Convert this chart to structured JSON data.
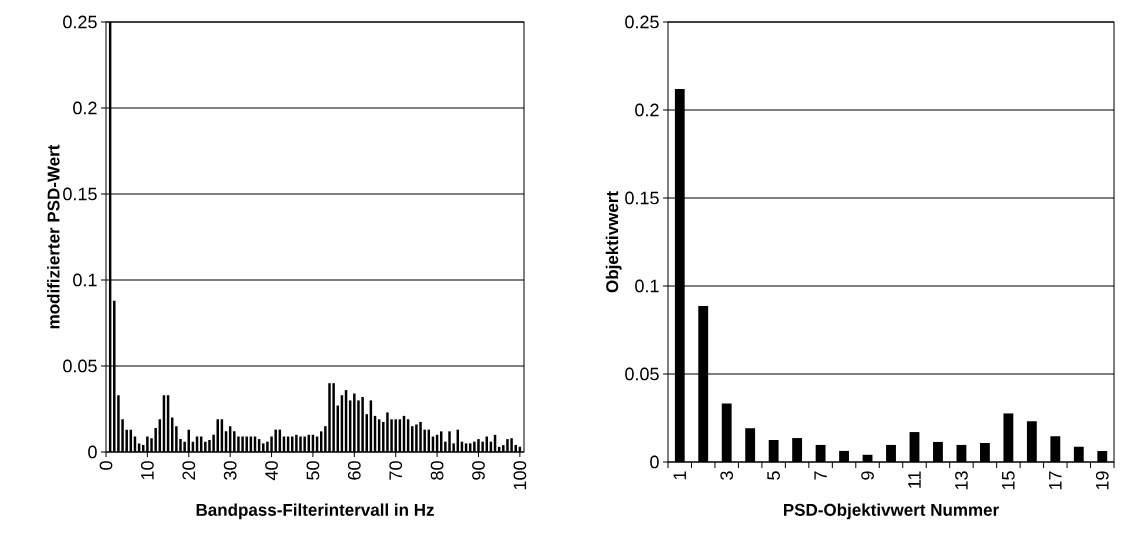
{
  "chart_data": [
    {
      "type": "bar",
      "xlabel": "Bandpass-Filterintervall in Hz",
      "ylabel": "modifizierter PSD-Wert",
      "color": "#000000",
      "grid": "y",
      "x": [
        1,
        2,
        3,
        4,
        5,
        6,
        7,
        8,
        9,
        10,
        11,
        12,
        13,
        14,
        15,
        16,
        17,
        18,
        19,
        20,
        21,
        22,
        23,
        24,
        25,
        26,
        27,
        28,
        29,
        30,
        31,
        32,
        33,
        34,
        35,
        36,
        37,
        38,
        39,
        40,
        41,
        42,
        43,
        44,
        45,
        46,
        47,
        48,
        49,
        50,
        51,
        52,
        53,
        54,
        55,
        56,
        57,
        58,
        59,
        60,
        61,
        62,
        63,
        64,
        65,
        66,
        67,
        68,
        69,
        70,
        71,
        72,
        73,
        74,
        75,
        76,
        77,
        78,
        79,
        80,
        81,
        82,
        83,
        84,
        85,
        86,
        87,
        88,
        89,
        90,
        91,
        92,
        93,
        94,
        95,
        96,
        97,
        98,
        99,
        100
      ],
      "values": [
        0.25,
        0.088,
        0.033,
        0.019,
        0.013,
        0.013,
        0.009,
        0.005,
        0.004,
        0.009,
        0.008,
        0.014,
        0.019,
        0.033,
        0.033,
        0.02,
        0.015,
        0.0075,
        0.006,
        0.013,
        0.006,
        0.009,
        0.009,
        0.006,
        0.007,
        0.01,
        0.019,
        0.019,
        0.012,
        0.015,
        0.012,
        0.009,
        0.009,
        0.009,
        0.009,
        0.009,
        0.0075,
        0.005,
        0.006,
        0.009,
        0.013,
        0.013,
        0.009,
        0.009,
        0.009,
        0.01,
        0.009,
        0.009,
        0.01,
        0.01,
        0.009,
        0.012,
        0.015,
        0.04,
        0.04,
        0.027,
        0.033,
        0.036,
        0.03,
        0.034,
        0.03,
        0.032,
        0.022,
        0.03,
        0.021,
        0.019,
        0.0175,
        0.023,
        0.019,
        0.019,
        0.019,
        0.021,
        0.019,
        0.015,
        0.016,
        0.0175,
        0.013,
        0.013,
        0.009,
        0.01,
        0.012,
        0.006,
        0.012,
        0.005,
        0.013,
        0.006,
        0.005,
        0.005,
        0.006,
        0.0075,
        0.006,
        0.009,
        0.006,
        0.01,
        0.003,
        0.004,
        0.0075,
        0.008,
        0.004,
        0.003
      ],
      "xlim": [
        0,
        101
      ],
      "xticks": [
        0,
        10,
        20,
        30,
        40,
        50,
        60,
        70,
        80,
        90,
        100
      ],
      "ylim": [
        0,
        0.25
      ],
      "yticks": [
        0,
        0.05,
        0.1,
        0.15,
        0.2,
        0.25
      ]
    },
    {
      "type": "bar",
      "xlabel": "PSD-Objektivwert Nummer",
      "ylabel": "Objektivwert",
      "color": "#000000",
      "grid": "y",
      "categories": [
        "1",
        null,
        "3",
        null,
        "5",
        null,
        "7",
        null,
        "9",
        null,
        "11",
        null,
        "13",
        null,
        "15",
        null,
        "17",
        null,
        "19"
      ],
      "values": [
        0.212,
        0.0886,
        0.0332,
        0.0192,
        0.0125,
        0.0136,
        0.0097,
        0.0063,
        0.0041,
        0.0097,
        0.017,
        0.0114,
        0.0097,
        0.0108,
        0.0276,
        0.0231,
        0.0147,
        0.0086,
        0.0063
      ],
      "ylim": [
        0,
        0.25
      ],
      "yticks": [
        0,
        0.05,
        0.1,
        0.15,
        0.2,
        0.25
      ]
    }
  ]
}
